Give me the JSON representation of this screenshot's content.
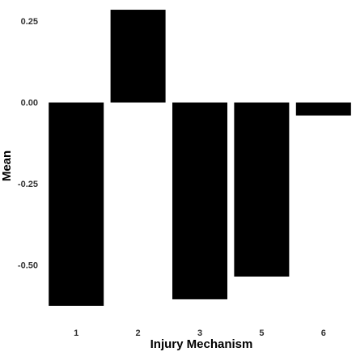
{
  "chart_data": {
    "type": "bar",
    "title": "",
    "xlabel": "Injury Mechanism",
    "ylabel": "Mean",
    "categories": [
      "1",
      "2",
      "3",
      "5",
      "6"
    ],
    "values": [
      -0.625,
      0.285,
      -0.605,
      -0.535,
      -0.04
    ],
    "ylim": [
      -0.64,
      0.3
    ],
    "yticks": [
      0.25,
      0.0,
      -0.25,
      -0.5
    ],
    "ytick_labels": [
      "0.25",
      "0.00",
      "-0.25",
      "-0.50"
    ],
    "bar_color": "#000000",
    "grid": false,
    "legend": "none"
  }
}
